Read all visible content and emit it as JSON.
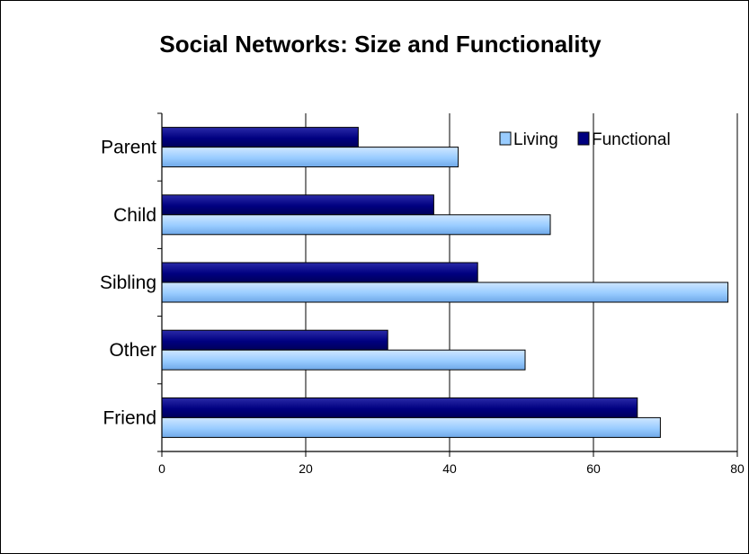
{
  "chart_data": {
    "type": "bar",
    "orientation": "horizontal",
    "title": "Social Networks: Size and Functionality",
    "categories": [
      "Parent",
      "Child",
      "Sibling",
      "Other",
      "Friend"
    ],
    "series": [
      {
        "name": "Living",
        "color": "#99ccff",
        "values": [
          41.2,
          54.0,
          78.7,
          50.5,
          69.3
        ]
      },
      {
        "name": "Functional",
        "color": "#000080",
        "values": [
          27.3,
          37.8,
          43.9,
          31.4,
          66.1
        ]
      }
    ],
    "xlim": [
      0,
      80
    ],
    "xticks": [
      "0",
      "20",
      "40",
      "60",
      "80"
    ],
    "grid": true,
    "legend_position": "top-right",
    "xlabel": "",
    "ylabel": ""
  }
}
